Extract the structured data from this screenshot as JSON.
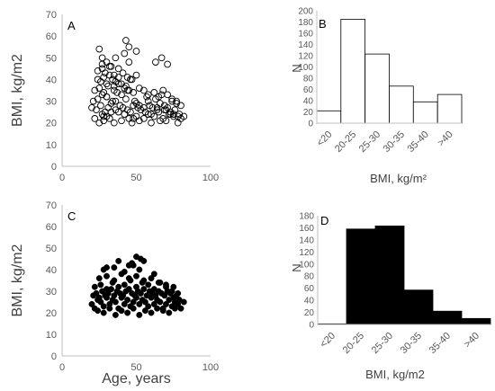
{
  "chart_data": [
    {
      "panel": "A",
      "type": "scatter",
      "marker": "open-circle",
      "xlabel": "",
      "ylabel": "BMI, kg/m2",
      "xlim": [
        0,
        100
      ],
      "ylim": [
        0,
        70
      ],
      "xticks": [
        "0",
        "50",
        "100"
      ],
      "yticks": [
        "0",
        "10",
        "20",
        "30",
        "40",
        "50",
        "60",
        "70"
      ],
      "x": [
        22,
        25,
        27,
        28,
        30,
        32,
        35,
        38,
        40,
        42,
        45,
        47,
        50,
        52,
        55,
        58,
        60,
        62,
        65,
        68,
        70,
        72,
        75,
        78,
        80,
        20,
        23,
        26,
        29,
        31,
        33,
        36,
        39,
        41,
        44,
        46,
        48,
        51,
        53,
        56,
        59,
        61,
        64,
        66,
        69,
        71,
        73,
        76,
        79,
        82,
        21,
        24,
        27,
        30,
        34,
        37,
        43,
        49,
        57,
        63,
        67,
        74,
        77,
        22,
        25,
        28,
        31,
        35,
        38,
        42,
        45,
        48,
        52,
        55,
        58,
        62,
        65,
        68,
        71,
        74,
        77,
        80,
        24,
        26,
        28,
        30,
        32,
        34,
        36,
        38,
        40,
        43,
        46,
        24,
        27,
        29,
        32,
        35,
        38,
        41,
        44,
        47,
        50,
        27,
        30,
        33,
        36,
        42,
        45,
        25,
        27,
        43,
        45,
        50,
        63,
        67,
        71,
        28,
        33,
        48,
        55,
        60,
        66,
        70,
        75,
        35,
        40,
        52,
        58,
        64,
        69,
        73,
        78,
        30,
        36,
        44,
        50
      ],
      "y": [
        22,
        20,
        24,
        21,
        23,
        22,
        20,
        25,
        21,
        24,
        22,
        20,
        23,
        21,
        22,
        24,
        20,
        23,
        25,
        22,
        21,
        24,
        23,
        20,
        22,
        27,
        26,
        28,
        25,
        27,
        29,
        26,
        28,
        27,
        26,
        25,
        28,
        27,
        26,
        25,
        28,
        27,
        26,
        29,
        28,
        27,
        25,
        26,
        24,
        23,
        30,
        31,
        33,
        32,
        30,
        34,
        31,
        30,
        32,
        31,
        33,
        30,
        29,
        35,
        36,
        34,
        37,
        35,
        38,
        36,
        35,
        34,
        36,
        35,
        33,
        34,
        32,
        35,
        33,
        31,
        30,
        28,
        40,
        39,
        41,
        38,
        42,
        40,
        39,
        41,
        38,
        37,
        40,
        44,
        45,
        43,
        46,
        42,
        45,
        43,
        41,
        40,
        42,
        47,
        48,
        46,
        50,
        52,
        48,
        54,
        50,
        58,
        55,
        53,
        48,
        50,
        47,
        23,
        25,
        22,
        27,
        24,
        21,
        26,
        24,
        37,
        33,
        28,
        30,
        27,
        26,
        24,
        23,
        32,
        30,
        35,
        29
      ],
      "title": ""
    },
    {
      "panel": "B",
      "type": "bar",
      "fill": "#ffffff",
      "xlabel": "BMI, kg/m²",
      "ylabel": "N",
      "categories": [
        "<20",
        "20-25",
        "25-30",
        "30-35",
        "35-40",
        ">40"
      ],
      "values": [
        22,
        185,
        123,
        66,
        38,
        51
      ],
      "ylim": [
        0,
        200
      ],
      "yticks": [
        "0",
        "20",
        "40",
        "60",
        "80",
        "100",
        "120",
        "140",
        "160",
        "180",
        "200"
      ],
      "title": ""
    },
    {
      "panel": "C",
      "type": "scatter",
      "marker": "filled-circle",
      "xlabel": "Age, years",
      "ylabel": "BMI, kg/m2",
      "xlim": [
        0,
        100
      ],
      "ylim": [
        0,
        70
      ],
      "xticks": [
        "0",
        "50",
        "100"
      ],
      "yticks": [
        "0",
        "10",
        "20",
        "30",
        "40",
        "50",
        "60",
        "70"
      ],
      "x": [
        20,
        22,
        24,
        26,
        28,
        30,
        32,
        34,
        36,
        38,
        40,
        42,
        44,
        46,
        48,
        50,
        52,
        54,
        56,
        58,
        60,
        62,
        64,
        66,
        68,
        70,
        72,
        74,
        76,
        78,
        80,
        82,
        21,
        23,
        25,
        27,
        29,
        31,
        33,
        35,
        37,
        39,
        41,
        43,
        45,
        47,
        49,
        51,
        53,
        55,
        57,
        59,
        61,
        63,
        65,
        67,
        69,
        71,
        73,
        75,
        77,
        79,
        22,
        26,
        30,
        34,
        38,
        42,
        46,
        50,
        54,
        58,
        62,
        66,
        70,
        74,
        78,
        24,
        28,
        32,
        36,
        40,
        44,
        48,
        52,
        56,
        60,
        64,
        68,
        72,
        76,
        25,
        30,
        35,
        40,
        45,
        50,
        55,
        60,
        65,
        70,
        75,
        28,
        35,
        42,
        48,
        52,
        55,
        62,
        38,
        45,
        50,
        53,
        30,
        47
      ],
      "y": [
        24,
        22,
        26,
        25,
        23,
        27,
        24,
        26,
        25,
        22,
        27,
        24,
        26,
        23,
        25,
        27,
        24,
        26,
        25,
        23,
        27,
        24,
        26,
        25,
        22,
        24,
        26,
        23,
        25,
        24,
        22,
        25,
        28,
        29,
        27,
        30,
        28,
        29,
        31,
        28,
        30,
        29,
        28,
        30,
        31,
        29,
        28,
        30,
        29,
        31,
        28,
        30,
        29,
        28,
        30,
        29,
        28,
        30,
        29,
        27,
        28,
        26,
        32,
        33,
        31,
        34,
        32,
        33,
        35,
        32,
        34,
        33,
        31,
        34,
        32,
        30,
        29,
        21,
        20,
        22,
        19,
        21,
        20,
        22,
        19,
        21,
        20,
        22,
        21,
        20,
        22,
        36,
        37,
        35,
        38,
        36,
        37,
        35,
        36,
        34,
        33,
        32,
        40,
        41,
        39,
        42,
        40,
        44,
        38,
        44,
        42,
        46,
        45,
        41,
        43
      ],
      "title": ""
    },
    {
      "panel": "D",
      "type": "bar",
      "fill": "#000000",
      "xlabel": "BMI, kg/m2",
      "ylabel": "N",
      "categories": [
        "<20",
        "20-25",
        "25-30",
        "30-35",
        "35-40",
        ">40"
      ],
      "values": [
        1,
        158,
        163,
        57,
        22,
        10
      ],
      "ylim": [
        0,
        180
      ],
      "yticks": [
        "0",
        "20",
        "40",
        "60",
        "80",
        "100",
        "120",
        "140",
        "160",
        "180"
      ],
      "title": ""
    }
  ]
}
